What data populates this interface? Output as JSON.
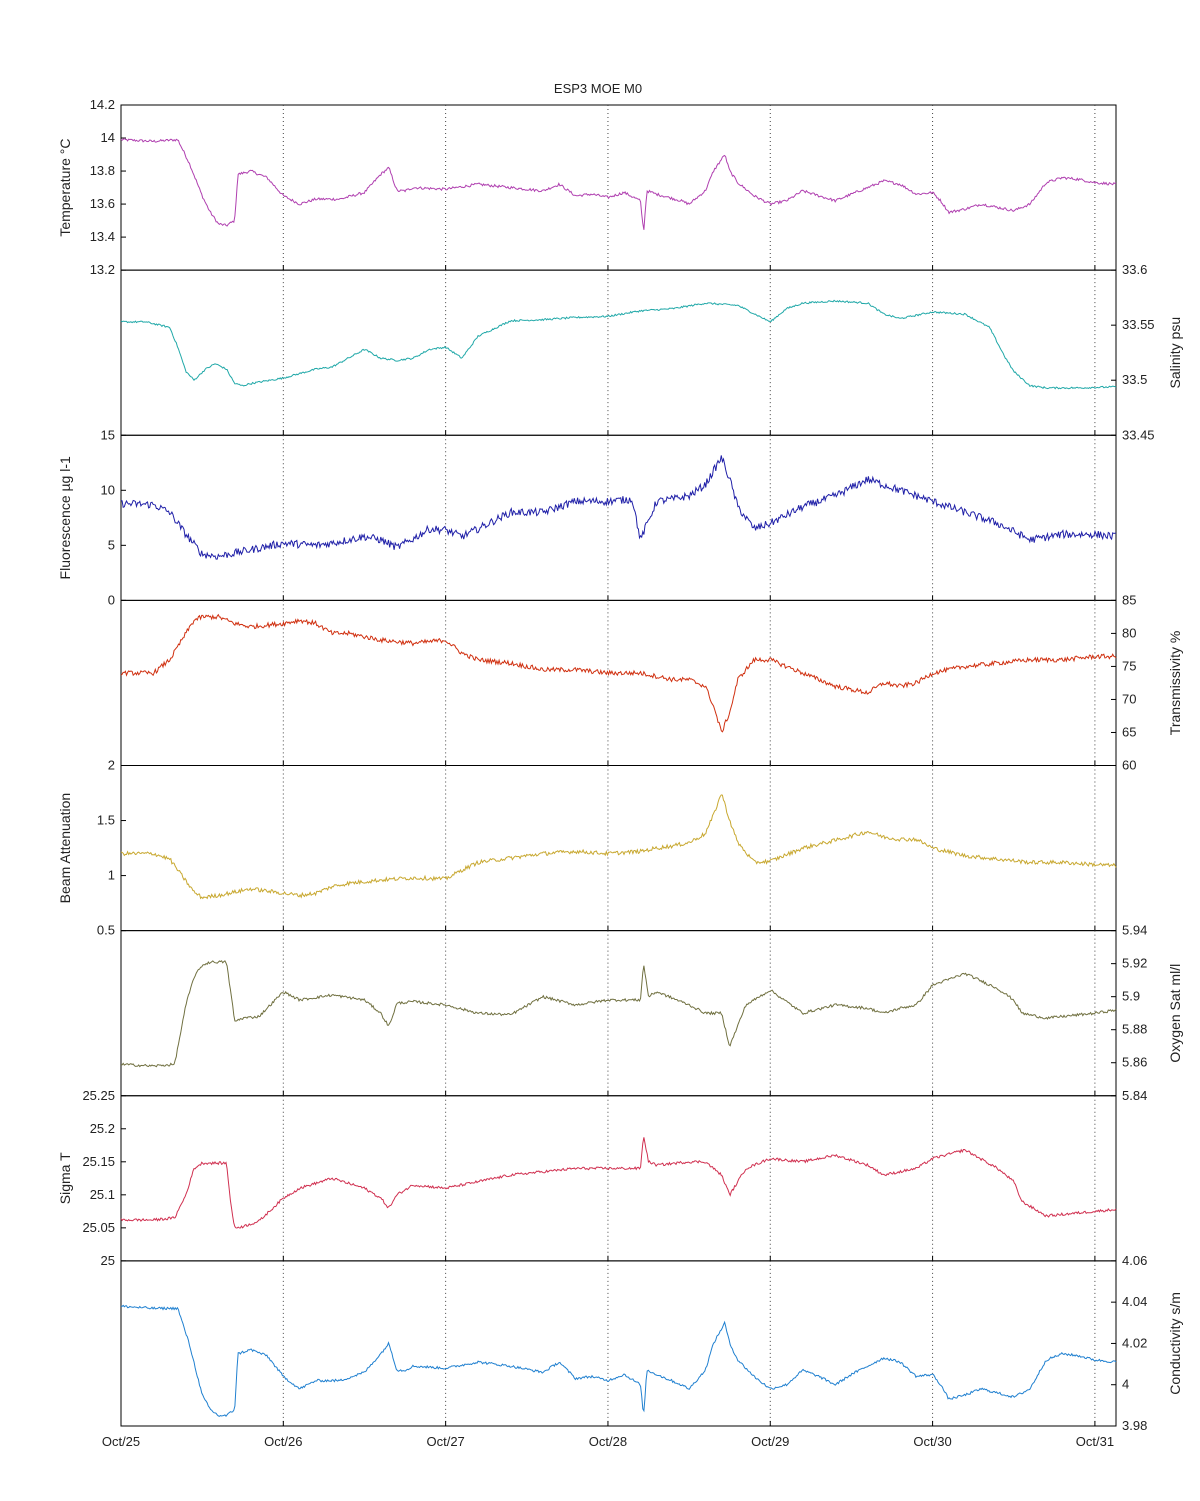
{
  "chart_data": {
    "type": "line",
    "title": "ESP3 MOE   M0",
    "x_range": [
      "Oct/25",
      "Oct/31"
    ],
    "x_ticks": [
      "Oct/25",
      "Oct/26",
      "Oct/27",
      "Oct/28",
      "Oct/29",
      "Oct/30",
      "Oct/31"
    ],
    "x_tick_days": [
      0,
      1,
      2,
      3,
      4,
      5,
      6
    ],
    "x_max_day": 6.13,
    "grid": "vertical dotted at day ticks",
    "panels": [
      {
        "name": "temperature",
        "ylabel": "Temperature °C",
        "side": "left",
        "ylim": [
          13.2,
          14.2
        ],
        "yticks": [
          "13.2",
          "13.4",
          "13.6",
          "13.8",
          "14",
          "14.2"
        ],
        "color": "#b040b0",
        "noise": 0.008,
        "x": [
          0,
          0.2,
          0.35,
          0.42,
          0.5,
          0.55,
          0.6,
          0.65,
          0.7,
          0.72,
          0.8,
          0.9,
          1.0,
          1.1,
          1.2,
          1.35,
          1.5,
          1.6,
          1.65,
          1.7,
          1.75,
          1.8,
          2.0,
          2.2,
          2.4,
          2.6,
          2.7,
          2.8,
          2.9,
          3.0,
          3.1,
          3.2,
          3.22,
          3.24,
          3.3,
          3.45,
          3.5,
          3.6,
          3.65,
          3.72,
          3.75,
          3.8,
          3.9,
          4.0,
          4.1,
          4.2,
          4.3,
          4.4,
          4.5,
          4.6,
          4.7,
          4.8,
          4.9,
          5.0,
          5.05,
          5.1,
          5.2,
          5.3,
          5.4,
          5.5,
          5.6,
          5.7,
          5.8,
          5.9,
          6.0,
          6.13
        ],
        "values": [
          13.99,
          13.98,
          13.99,
          13.85,
          13.65,
          13.55,
          13.48,
          13.47,
          13.5,
          13.78,
          13.8,
          13.76,
          13.65,
          13.6,
          13.63,
          13.63,
          13.67,
          13.78,
          13.82,
          13.68,
          13.68,
          13.7,
          13.69,
          13.72,
          13.7,
          13.68,
          13.72,
          13.65,
          13.66,
          13.64,
          13.67,
          13.62,
          13.43,
          13.68,
          13.66,
          13.62,
          13.6,
          13.68,
          13.8,
          13.9,
          13.8,
          13.73,
          13.65,
          13.6,
          13.62,
          13.68,
          13.65,
          13.62,
          13.66,
          13.7,
          13.74,
          13.72,
          13.66,
          13.67,
          13.62,
          13.55,
          13.57,
          13.6,
          13.58,
          13.56,
          13.6,
          13.73,
          13.76,
          13.75,
          13.73,
          13.72
        ]
      },
      {
        "name": "salinity",
        "ylabel": "Salinity psu",
        "side": "right",
        "ylim": [
          33.45,
          33.6
        ],
        "yticks": [
          "33.45",
          "33.5",
          "33.55",
          "33.6"
        ],
        "color": "#20a8a8",
        "noise": 0.0008,
        "x": [
          0,
          0.15,
          0.3,
          0.35,
          0.4,
          0.45,
          0.52,
          0.58,
          0.65,
          0.7,
          0.75,
          0.8,
          1.0,
          1.2,
          1.3,
          1.4,
          1.5,
          1.6,
          1.7,
          1.8,
          1.9,
          2.0,
          2.1,
          2.2,
          2.4,
          2.6,
          2.8,
          3.0,
          3.2,
          3.4,
          3.6,
          3.8,
          4.0,
          4.1,
          4.2,
          4.4,
          4.6,
          4.7,
          4.8,
          5.0,
          5.2,
          5.35,
          5.45,
          5.5,
          5.6,
          5.7,
          5.9,
          6.13
        ],
        "values": [
          33.553,
          33.553,
          33.548,
          33.53,
          33.508,
          33.5,
          33.51,
          33.515,
          33.51,
          33.497,
          33.495,
          33.497,
          33.502,
          33.51,
          33.512,
          33.52,
          33.528,
          33.52,
          33.518,
          33.52,
          33.528,
          33.53,
          33.52,
          33.54,
          33.554,
          33.555,
          33.557,
          33.558,
          33.563,
          33.565,
          33.57,
          33.568,
          33.553,
          33.565,
          33.57,
          33.572,
          33.57,
          33.56,
          33.556,
          33.562,
          33.56,
          33.548,
          33.52,
          33.508,
          33.495,
          33.493,
          33.493,
          33.494
        ]
      },
      {
        "name": "fluorescence",
        "ylabel": "Fluorescence µg l-1",
        "side": "left",
        "ylim": [
          0,
          15
        ],
        "yticks": [
          "0",
          "5",
          "10",
          "15"
        ],
        "color": "#2020a8",
        "noise": 0.35,
        "x": [
          0,
          0.2,
          0.3,
          0.4,
          0.5,
          0.6,
          0.8,
          1.0,
          1.2,
          1.3,
          1.5,
          1.6,
          1.7,
          1.8,
          1.9,
          2.0,
          2.1,
          2.2,
          2.4,
          2.6,
          2.8,
          3.0,
          3.15,
          3.2,
          3.3,
          3.4,
          3.5,
          3.6,
          3.7,
          3.75,
          3.8,
          3.9,
          4.0,
          4.2,
          4.4,
          4.6,
          4.7,
          4.8,
          5.0,
          5.2,
          5.4,
          5.6,
          5.8,
          6.0,
          6.13
        ],
        "values": [
          8.8,
          8.7,
          8.0,
          6.0,
          4.2,
          4.0,
          4.6,
          5.2,
          5.0,
          5.2,
          5.8,
          5.5,
          4.8,
          5.6,
          6.5,
          6.4,
          5.8,
          6.5,
          8.0,
          8.0,
          9.0,
          9.0,
          9.2,
          5.5,
          9.0,
          9.2,
          9.5,
          10.5,
          13.0,
          11.0,
          8.5,
          6.5,
          7.0,
          8.5,
          9.5,
          11.0,
          10.5,
          10.0,
          9.0,
          8.0,
          7.0,
          5.5,
          6.0,
          6.0,
          5.8
        ]
      },
      {
        "name": "transmissivity",
        "ylabel": "Transmissivity %",
        "side": "right",
        "ylim": [
          60,
          85
        ],
        "yticks": [
          "60",
          "65",
          "70",
          "75",
          "80",
          "85"
        ],
        "color": "#d03010",
        "noise": 0.35,
        "x": [
          0,
          0.2,
          0.3,
          0.4,
          0.45,
          0.5,
          0.6,
          0.7,
          0.8,
          1.0,
          1.1,
          1.2,
          1.3,
          1.4,
          1.6,
          1.8,
          2.0,
          2.1,
          2.2,
          2.4,
          2.6,
          2.8,
          3.0,
          3.2,
          3.3,
          3.4,
          3.5,
          3.6,
          3.65,
          3.7,
          3.75,
          3.8,
          3.9,
          4.0,
          4.2,
          4.4,
          4.6,
          4.7,
          4.8,
          4.9,
          5.0,
          5.2,
          5.4,
          5.6,
          5.8,
          6.0,
          6.13
        ],
        "values": [
          74.0,
          74.0,
          76.0,
          80.0,
          82.0,
          82.5,
          82.5,
          81.5,
          81.0,
          81.5,
          82.0,
          81.5,
          80.0,
          80.0,
          79.0,
          78.5,
          79.0,
          77.0,
          76.0,
          75.5,
          74.5,
          74.5,
          74.0,
          74.0,
          73.5,
          73.0,
          73.0,
          72.0,
          69.0,
          65.0,
          68.0,
          73.0,
          76.0,
          76.0,
          74.0,
          72.0,
          71.0,
          72.5,
          72.0,
          72.5,
          74.0,
          75.0,
          75.5,
          76.0,
          76.0,
          76.5,
          76.5
        ]
      },
      {
        "name": "beam_attenuation",
        "ylabel": "Beam Attenuation",
        "side": "left",
        "ylim": [
          0.5,
          2
        ],
        "yticks": [
          "0.5",
          "1",
          "1.5",
          "2"
        ],
        "color": "#c8a830",
        "noise": 0.018,
        "x": [
          0,
          0.2,
          0.3,
          0.4,
          0.45,
          0.5,
          0.6,
          0.7,
          0.8,
          1.0,
          1.1,
          1.2,
          1.3,
          1.4,
          1.6,
          1.8,
          2.0,
          2.1,
          2.2,
          2.4,
          2.6,
          2.8,
          3.0,
          3.2,
          3.3,
          3.4,
          3.5,
          3.6,
          3.65,
          3.7,
          3.75,
          3.8,
          3.9,
          4.0,
          4.2,
          4.4,
          4.6,
          4.7,
          4.8,
          4.9,
          5.0,
          5.2,
          5.4,
          5.6,
          5.8,
          6.0,
          6.13
        ],
        "values": [
          1.2,
          1.2,
          1.15,
          0.95,
          0.85,
          0.8,
          0.82,
          0.85,
          0.88,
          0.84,
          0.82,
          0.84,
          0.9,
          0.93,
          0.96,
          0.98,
          0.97,
          1.05,
          1.12,
          1.16,
          1.2,
          1.22,
          1.2,
          1.22,
          1.25,
          1.27,
          1.3,
          1.38,
          1.55,
          1.75,
          1.5,
          1.3,
          1.12,
          1.13,
          1.25,
          1.32,
          1.4,
          1.35,
          1.33,
          1.33,
          1.25,
          1.18,
          1.15,
          1.12,
          1.12,
          1.1,
          1.09
        ]
      },
      {
        "name": "oxygen_sat",
        "ylabel": "Oxygen Sat ml/l",
        "side": "right",
        "ylim": [
          5.84,
          5.94
        ],
        "yticks": [
          "5.84",
          "5.86",
          "5.88",
          "5.9",
          "5.92",
          "5.94"
        ],
        "color": "#707040",
        "noise": 0.0008,
        "x": [
          0,
          0.2,
          0.33,
          0.4,
          0.45,
          0.5,
          0.55,
          0.65,
          0.68,
          0.7,
          0.75,
          0.85,
          1.0,
          1.1,
          1.3,
          1.5,
          1.6,
          1.65,
          1.7,
          1.8,
          2.0,
          2.2,
          2.4,
          2.6,
          2.8,
          3.0,
          3.2,
          3.22,
          3.25,
          3.3,
          3.5,
          3.6,
          3.7,
          3.75,
          3.85,
          4.0,
          4.2,
          4.4,
          4.6,
          4.7,
          4.8,
          4.9,
          5.0,
          5.2,
          5.4,
          5.5,
          5.55,
          5.7,
          6.0,
          6.13
        ],
        "values": [
          5.859,
          5.858,
          5.859,
          5.895,
          5.912,
          5.919,
          5.921,
          5.921,
          5.9,
          5.885,
          5.887,
          5.888,
          5.903,
          5.898,
          5.901,
          5.898,
          5.89,
          5.882,
          5.896,
          5.897,
          5.895,
          5.89,
          5.889,
          5.9,
          5.895,
          5.898,
          5.898,
          5.92,
          5.9,
          5.903,
          5.895,
          5.89,
          5.89,
          5.87,
          5.895,
          5.904,
          5.89,
          5.895,
          5.893,
          5.89,
          5.893,
          5.895,
          5.907,
          5.914,
          5.905,
          5.898,
          5.89,
          5.887,
          5.89,
          5.892
        ]
      },
      {
        "name": "sigma_t",
        "ylabel": "Sigma T",
        "side": "left",
        "ylim": [
          25,
          25.25
        ],
        "yticks": [
          "25",
          "25.05",
          "25.1",
          "25.15",
          "25.2",
          "25.25"
        ],
        "color": "#d03050",
        "noise": 0.002,
        "x": [
          0,
          0.2,
          0.33,
          0.4,
          0.45,
          0.5,
          0.55,
          0.65,
          0.68,
          0.7,
          0.75,
          0.85,
          1.0,
          1.1,
          1.3,
          1.5,
          1.6,
          1.65,
          1.7,
          1.8,
          2.0,
          2.2,
          2.4,
          2.6,
          2.8,
          3.0,
          3.2,
          3.22,
          3.25,
          3.3,
          3.5,
          3.6,
          3.7,
          3.75,
          3.85,
          4.0,
          4.2,
          4.4,
          4.6,
          4.7,
          4.8,
          4.9,
          5.0,
          5.2,
          5.4,
          5.5,
          5.55,
          5.7,
          6.0,
          6.13
        ],
        "values": [
          25.062,
          25.062,
          25.065,
          25.1,
          25.14,
          25.148,
          25.148,
          25.148,
          25.08,
          25.05,
          25.052,
          25.06,
          25.095,
          25.11,
          25.125,
          25.11,
          25.095,
          25.08,
          25.1,
          25.115,
          25.11,
          25.12,
          25.13,
          25.135,
          25.14,
          25.14,
          25.14,
          25.19,
          25.15,
          25.145,
          25.15,
          25.15,
          25.13,
          25.1,
          25.14,
          25.155,
          25.15,
          25.16,
          25.145,
          25.13,
          25.135,
          25.14,
          25.155,
          25.168,
          25.14,
          25.12,
          25.09,
          25.068,
          25.075,
          25.078
        ]
      },
      {
        "name": "conductivity",
        "ylabel": "Conductivity s/m",
        "side": "right",
        "ylim": [
          3.98,
          4.06
        ],
        "yticks": [
          "3.98",
          "4",
          "4.02",
          "4.04",
          "4.06"
        ],
        "color": "#2080d0",
        "noise": 0.0006,
        "x": [
          0,
          0.2,
          0.35,
          0.42,
          0.5,
          0.55,
          0.6,
          0.65,
          0.7,
          0.72,
          0.8,
          0.9,
          1.0,
          1.1,
          1.2,
          1.35,
          1.5,
          1.6,
          1.65,
          1.7,
          1.75,
          1.8,
          2.0,
          2.2,
          2.4,
          2.6,
          2.7,
          2.8,
          2.9,
          3.0,
          3.1,
          3.2,
          3.22,
          3.24,
          3.3,
          3.45,
          3.5,
          3.6,
          3.65,
          3.72,
          3.75,
          3.8,
          3.9,
          4.0,
          4.1,
          4.2,
          4.3,
          4.4,
          4.5,
          4.6,
          4.7,
          4.8,
          4.9,
          5.0,
          5.05,
          5.1,
          5.2,
          5.3,
          5.4,
          5.5,
          5.6,
          5.7,
          5.8,
          5.9,
          6.0,
          6.13
        ],
        "values": [
          4.038,
          4.037,
          4.037,
          4.02,
          3.995,
          3.988,
          3.985,
          3.985,
          3.988,
          4.015,
          4.017,
          4.014,
          4.004,
          3.998,
          4.002,
          4.002,
          4.006,
          4.015,
          4.02,
          4.007,
          4.007,
          4.009,
          4.008,
          4.011,
          4.009,
          4.006,
          4.011,
          4.003,
          4.004,
          4.002,
          4.005,
          4.0,
          3.985,
          4.007,
          4.005,
          4.0,
          3.998,
          4.007,
          4.02,
          4.03,
          4.02,
          4.012,
          4.004,
          3.998,
          4.0,
          4.007,
          4.004,
          4.0,
          4.005,
          4.009,
          4.013,
          4.011,
          4.004,
          4.005,
          4.0,
          3.993,
          3.995,
          3.998,
          3.996,
          3.994,
          3.998,
          4.012,
          4.015,
          4.014,
          4.012,
          4.011
        ]
      }
    ]
  }
}
